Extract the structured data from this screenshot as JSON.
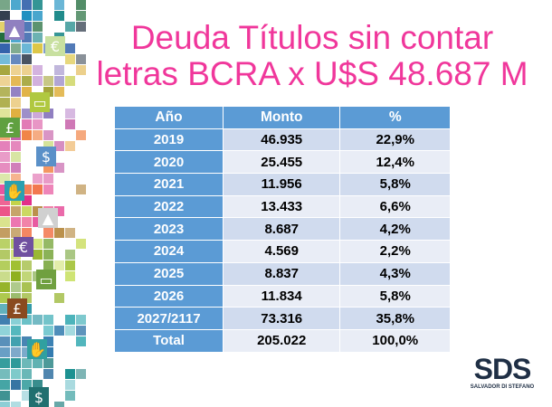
{
  "title": {
    "line1": "Deuda Títulos sin contar",
    "line2": "letras BCRA x U$S 48.687 M",
    "color": "#F0379B"
  },
  "table": {
    "headers": [
      "Año",
      "Monto",
      "%"
    ],
    "rows": [
      [
        "2019",
        "46.935",
        "22,9%"
      ],
      [
        "2020",
        "25.455",
        "12,4%"
      ],
      [
        "2021",
        "11.956",
        "5,8%"
      ],
      [
        "2022",
        "13.433",
        "6,6%"
      ],
      [
        "2023",
        "8.687",
        "4,2%"
      ],
      [
        "2024",
        "4.569",
        "2,2%"
      ],
      [
        "2025",
        "8.837",
        "4,3%"
      ],
      [
        "2026",
        "11.834",
        "5,8%"
      ],
      [
        "2027/2117",
        "73.316",
        "35,8%"
      ],
      [
        "Total",
        "205.022",
        "100,0%"
      ]
    ],
    "header_color": "#5B9BD5"
  },
  "logo": {
    "text": "SDS",
    "subtext": "SALVADOR DI STEFANO"
  },
  "decor_icons": [
    "chart-icon",
    "euro-icon",
    "banknote-icon",
    "pound-icon",
    "dollar-icon",
    "hand-coin-icon"
  ]
}
